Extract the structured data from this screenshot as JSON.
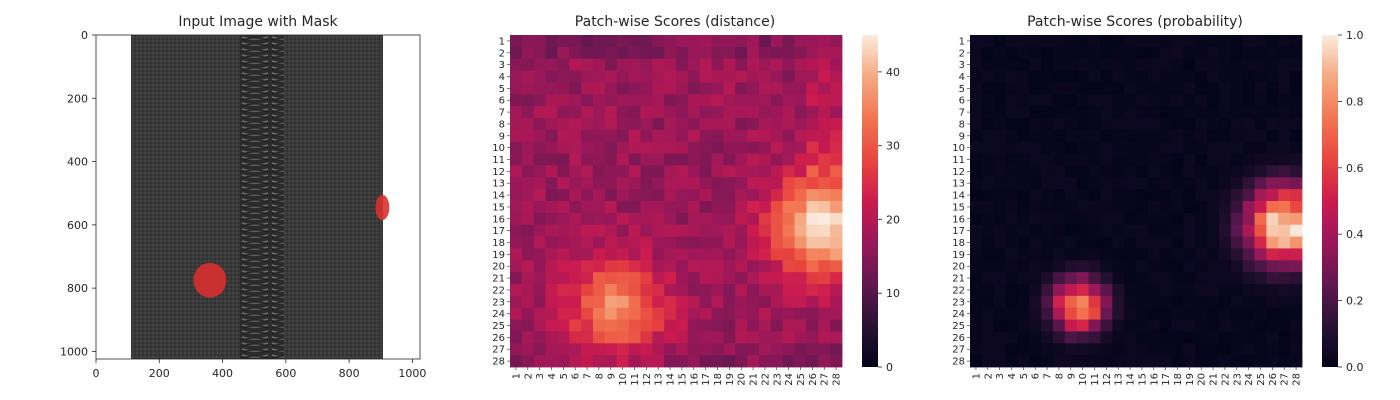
{
  "chart_data": [
    {
      "type": "image",
      "title": "Input Image with Mask",
      "xlim": [
        0,
        1024
      ],
      "ylim": [
        1024,
        0
      ],
      "xticks": [
        0,
        200,
        400,
        600,
        800,
        1000
      ],
      "yticks": [
        0,
        200,
        400,
        600,
        800,
        1000
      ],
      "image_content": "dark grey zipper tape with a metal coil zipper running vertically down the centre",
      "mask_regions": [
        {
          "label": "defect",
          "cx": 360,
          "cy": 775,
          "rx": 52,
          "ry": 55,
          "color": "#d93030"
        },
        {
          "label": "defect",
          "cx": 905,
          "cy": 545,
          "rx": 22,
          "ry": 40,
          "color": "#d93030"
        }
      ]
    },
    {
      "type": "heatmap",
      "title": "Patch-wise Scores (distance)",
      "rows": 28,
      "cols": 28,
      "row_labels": [
        "1",
        "2",
        "3",
        "4",
        "5",
        "6",
        "7",
        "8",
        "9",
        "10",
        "11",
        "12",
        "13",
        "14",
        "15",
        "16",
        "17",
        "18",
        "19",
        "20",
        "21",
        "22",
        "23",
        "24",
        "25",
        "26",
        "27",
        "28"
      ],
      "col_labels": [
        "1",
        "2",
        "3",
        "4",
        "5",
        "6",
        "7",
        "8",
        "9",
        "10",
        "11",
        "12",
        "13",
        "14",
        "15",
        "16",
        "17",
        "18",
        "19",
        "20",
        "21",
        "22",
        "23",
        "24",
        "25",
        "26",
        "27",
        "28"
      ],
      "colorbar": {
        "min": 0,
        "max": 45,
        "ticks": [
          0,
          10,
          20,
          30,
          40
        ]
      },
      "colormap": "rocket",
      "baseline": 17,
      "hotspots": [
        {
          "row": 16.5,
          "col": 27,
          "peak": 45,
          "radius": 3.0,
          "description": "right-edge anomaly"
        },
        {
          "row": 23.5,
          "col": 9.5,
          "peak": 36,
          "radius": 2.8,
          "description": "lower-left anomaly"
        }
      ]
    },
    {
      "type": "heatmap",
      "title": "Patch-wise Scores (probability)",
      "rows": 28,
      "cols": 28,
      "row_labels": [
        "1",
        "2",
        "3",
        "4",
        "5",
        "6",
        "7",
        "8",
        "9",
        "10",
        "11",
        "12",
        "13",
        "14",
        "15",
        "16",
        "17",
        "18",
        "19",
        "20",
        "21",
        "22",
        "23",
        "24",
        "25",
        "26",
        "27",
        "28"
      ],
      "col_labels": [
        "1",
        "2",
        "3",
        "4",
        "5",
        "6",
        "7",
        "8",
        "9",
        "10",
        "11",
        "12",
        "13",
        "14",
        "15",
        "16",
        "17",
        "18",
        "19",
        "20",
        "21",
        "22",
        "23",
        "24",
        "25",
        "26",
        "27",
        "28"
      ],
      "colorbar": {
        "min": 0.0,
        "max": 1.0,
        "ticks": [
          "0.0",
          "0.2",
          "0.4",
          "0.6",
          "0.8",
          "1.0"
        ]
      },
      "colormap": "rocket",
      "baseline": 0.0,
      "hotspots": [
        {
          "row": 16.5,
          "col": 27,
          "peak": 1.0,
          "radius": 2.3,
          "description": "right-edge anomaly"
        },
        {
          "row": 23.3,
          "col": 9.7,
          "peak": 0.85,
          "radius": 1.6,
          "description": "lower-left anomaly"
        }
      ]
    }
  ]
}
